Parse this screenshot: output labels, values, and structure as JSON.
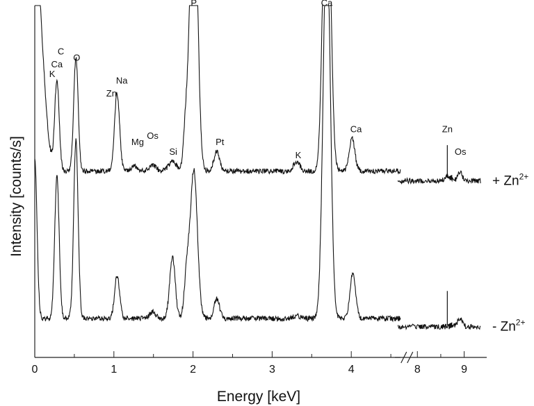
{
  "chart_data": {
    "type": "line",
    "xlabel": "Energy [keV]",
    "ylabel": "Intensity [counts/s]",
    "x_ticks": [
      "0",
      "1",
      "2",
      "3",
      "4",
      "8",
      "9"
    ],
    "x_break_after_keV": 4.62,
    "x_resume_keV": 7.58,
    "xlim": [
      0,
      9.35
    ],
    "ylim": [
      0,
      100
    ],
    "series": [
      {
        "name": "+ Zn2+",
        "label_main": "+ Zn",
        "label_sup": "2+",
        "baseline": 50,
        "break_baseline": 47,
        "peaks": [
          {
            "keV": 0.0,
            "height": 95,
            "width": 0.028
          },
          {
            "keV": 0.03,
            "height": 56,
            "width": 0.08
          },
          {
            "keV": 0.28,
            "height": 28,
            "width": 0.028
          },
          {
            "keV": 0.52,
            "height": 35,
            "width": 0.028
          },
          {
            "keV": 1.04,
            "height": 24,
            "width": 0.032
          },
          {
            "keV": 1.26,
            "height": 1.5,
            "width": 0.04
          },
          {
            "keV": 1.49,
            "height": 2,
            "width": 0.04
          },
          {
            "keV": 1.74,
            "height": 3,
            "width": 0.05
          },
          {
            "keV": 1.91,
            "height": 14,
            "width": 0.03
          },
          {
            "keV": 2.01,
            "height": 100,
            "width": 0.045
          },
          {
            "keV": 2.3,
            "height": 6,
            "width": 0.035
          },
          {
            "keV": 3.31,
            "height": 3,
            "width": 0.04
          },
          {
            "keV": 3.69,
            "height": 115,
            "width": 0.045
          },
          {
            "keV": 4.01,
            "height": 10,
            "width": 0.035
          },
          {
            "keV": 8.64,
            "height": 1.5,
            "width": 0.05
          },
          {
            "keV": 8.91,
            "height": 2.5,
            "width": 0.05
          }
        ]
      },
      {
        "name": "- Zn2+",
        "label_main": "- Zn",
        "label_sup": "2+",
        "baseline": 4.5,
        "break_baseline": 2,
        "peaks": [
          {
            "keV": 0.0,
            "height": 50,
            "width": 0.028
          },
          {
            "keV": 0.28,
            "height": 44,
            "width": 0.028
          },
          {
            "keV": 0.52,
            "height": 55,
            "width": 0.028
          },
          {
            "keV": 1.04,
            "height": 13,
            "width": 0.032
          },
          {
            "keV": 1.49,
            "height": 2,
            "width": 0.04
          },
          {
            "keV": 1.74,
            "height": 19,
            "width": 0.035
          },
          {
            "keV": 1.92,
            "height": 13,
            "width": 0.03
          },
          {
            "keV": 2.01,
            "height": 46,
            "width": 0.045
          },
          {
            "keV": 2.3,
            "height": 6,
            "width": 0.035
          },
          {
            "keV": 3.31,
            "height": 1,
            "width": 0.04
          },
          {
            "keV": 3.69,
            "height": 120,
            "width": 0.045
          },
          {
            "keV": 4.02,
            "height": 14,
            "width": 0.035
          },
          {
            "keV": 8.91,
            "height": 2.5,
            "width": 0.05
          }
        ]
      }
    ],
    "peak_labels": [
      {
        "text": "K",
        "keV": 0.22,
        "y": 79
      },
      {
        "text": "Ca",
        "keV": 0.28,
        "y": 82
      },
      {
        "text": "C",
        "keV": 0.33,
        "y": 86
      },
      {
        "text": "O",
        "keV": 0.53,
        "y": 84
      },
      {
        "text": "Na",
        "keV": 1.1,
        "y": 77
      },
      {
        "text": "Zn",
        "keV": 0.97,
        "y": 73
      },
      {
        "text": "Mg",
        "keV": 1.3,
        "y": 58
      },
      {
        "text": "Os",
        "keV": 1.49,
        "y": 60
      },
      {
        "text": "Si",
        "keV": 1.75,
        "y": 55
      },
      {
        "text": "P",
        "keV": 2.01,
        "y": 101
      },
      {
        "text": "Pt",
        "keV": 2.34,
        "y": 58
      },
      {
        "text": "K",
        "keV": 3.33,
        "y": 54
      },
      {
        "text": "Ca",
        "keV": 3.69,
        "y": 101
      },
      {
        "text": "Ca",
        "keV": 4.06,
        "y": 62
      },
      {
        "text": "Zn",
        "keV": 8.64,
        "y": 62
      },
      {
        "text": "Os",
        "keV": 8.92,
        "y": 55
      }
    ],
    "arrows": [
      {
        "keV": 8.64,
        "y_from": 58,
        "y_to": 48
      },
      {
        "keV": 8.64,
        "y_from": 13,
        "y_to": 2.5
      }
    ]
  }
}
